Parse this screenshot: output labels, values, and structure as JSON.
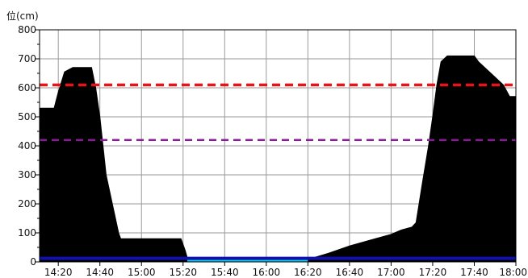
{
  "chart_data": {
    "type": "area",
    "title": "",
    "ylabel": "",
    "unit_label": "位(cm)",
    "xlabel": "",
    "ylim": [
      0,
      800
    ],
    "yticks": [
      0,
      100,
      200,
      300,
      400,
      500,
      600,
      700,
      800
    ],
    "xlim": [
      "14:11",
      "18:00"
    ],
    "xticks": [
      "14:20",
      "14:40",
      "15:00",
      "15:20",
      "15:40",
      "16:00",
      "16:20",
      "16:40",
      "17:00",
      "17:20",
      "17:40",
      "18:00"
    ],
    "grid": true,
    "series": [
      {
        "style": "filled-area",
        "color": "#000000",
        "x": [
          "14:11",
          "14:18",
          "14:20",
          "14:23",
          "14:27",
          "14:36",
          "14:38",
          "14:40",
          "14:43",
          "14:46",
          "14:49",
          "14:50",
          "15:05",
          "15:19",
          "15:21",
          "15:22",
          "15:23",
          "16:19",
          "16:23",
          "16:30",
          "16:40",
          "16:50",
          "17:00",
          "17:05",
          "17:10",
          "17:12",
          "17:15",
          "17:18",
          "17:20",
          "17:22",
          "17:24",
          "17:27",
          "17:40",
          "17:42",
          "17:48",
          "17:54",
          "17:57",
          "18:00"
        ],
        "y": [
          530,
          530,
          585,
          655,
          670,
          670,
          600,
          500,
          300,
          200,
          100,
          80,
          80,
          80,
          40,
          15,
          5,
          5,
          15,
          30,
          55,
          75,
          95,
          110,
          120,
          135,
          270,
          400,
          500,
          610,
          690,
          710,
          710,
          690,
          650,
          610,
          570,
          570
        ]
      },
      {
        "style": "line",
        "color": "#00d8e8",
        "x": [
          "15:22",
          "16:20"
        ],
        "y": [
          7,
          7
        ]
      },
      {
        "style": "line",
        "color": "#1010b0",
        "x": [
          "14:11",
          "18:00"
        ],
        "y": [
          12,
          12
        ]
      }
    ],
    "reference_lines": [
      {
        "y": 610,
        "color": "#ee1111",
        "style": "dashed"
      },
      {
        "y": 420,
        "color": "#8a1a9a",
        "style": "dashed"
      }
    ]
  }
}
